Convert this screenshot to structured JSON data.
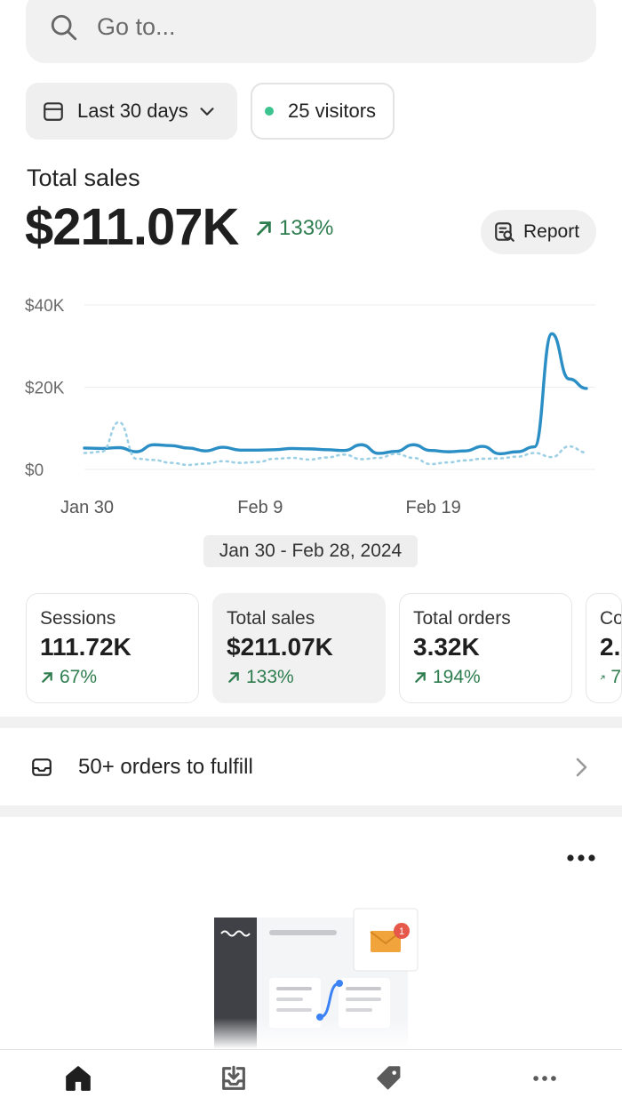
{
  "search": {
    "placeholder": "Go to..."
  },
  "filters": {
    "date_range_label": "Last 30 days",
    "visitors_label": "25 visitors"
  },
  "summary": {
    "label": "Total sales",
    "value": "$211.07K",
    "delta": "133%",
    "report_label": "Report"
  },
  "chart_data": {
    "type": "line",
    "y_ticks": [
      "$40K",
      "$20K",
      "$0"
    ],
    "ylim": [
      0,
      40000
    ],
    "x_ticks": [
      "Jan 30",
      "Feb 9",
      "Feb 19"
    ],
    "x": [
      "Jan 30",
      "Jan 31",
      "Feb 1",
      "Feb 2",
      "Feb 3",
      "Feb 4",
      "Feb 5",
      "Feb 6",
      "Feb 7",
      "Feb 8",
      "Feb 9",
      "Feb 10",
      "Feb 11",
      "Feb 12",
      "Feb 13",
      "Feb 14",
      "Feb 15",
      "Feb 16",
      "Feb 17",
      "Feb 18",
      "Feb 19",
      "Feb 20",
      "Feb 21",
      "Feb 22",
      "Feb 23",
      "Feb 24",
      "Feb 25",
      "Feb 26",
      "Feb 27",
      "Feb 28"
    ],
    "series": [
      {
        "style": "solid",
        "color": "#2b8fc6",
        "values": [
          5200,
          5100,
          5300,
          4300,
          6000,
          5800,
          5200,
          4500,
          5400,
          4700,
          4700,
          4800,
          5100,
          5000,
          4800,
          4600,
          6000,
          3900,
          4400,
          6000,
          4600,
          4300,
          4500,
          5600,
          3800,
          4300,
          5500,
          33000,
          22000,
          19700
        ]
      },
      {
        "style": "dotted",
        "color": "#9dd0e4",
        "values": [
          4000,
          4300,
          11500,
          2600,
          2300,
          1600,
          1100,
          1400,
          2000,
          1600,
          1800,
          2600,
          2800,
          2400,
          2900,
          3600,
          2500,
          2800,
          3800,
          2800,
          1300,
          1700,
          2200,
          2600,
          2700,
          3100,
          4000,
          3000,
          5600,
          4100
        ]
      }
    ],
    "grid": true
  },
  "range_badge": "Jan 30 - Feb 28, 2024",
  "metrics": [
    {
      "title": "Sessions",
      "value": "111.72K",
      "delta": "67%"
    },
    {
      "title": "Total sales",
      "value": "$211.07K",
      "delta": "133%"
    },
    {
      "title": "Total orders",
      "value": "3.32K",
      "delta": "194%"
    },
    {
      "title": "Co",
      "value": "2.",
      "delta": "7"
    }
  ],
  "fulfill": {
    "label": "50+ orders to fulfill"
  },
  "illustration": {
    "badge_count": "1"
  },
  "colors": {
    "positive": "#2e7d4f",
    "line": "#2b8fc6",
    "line_prev": "#9dd0e4",
    "visitor_dot": "#3bc48d"
  }
}
